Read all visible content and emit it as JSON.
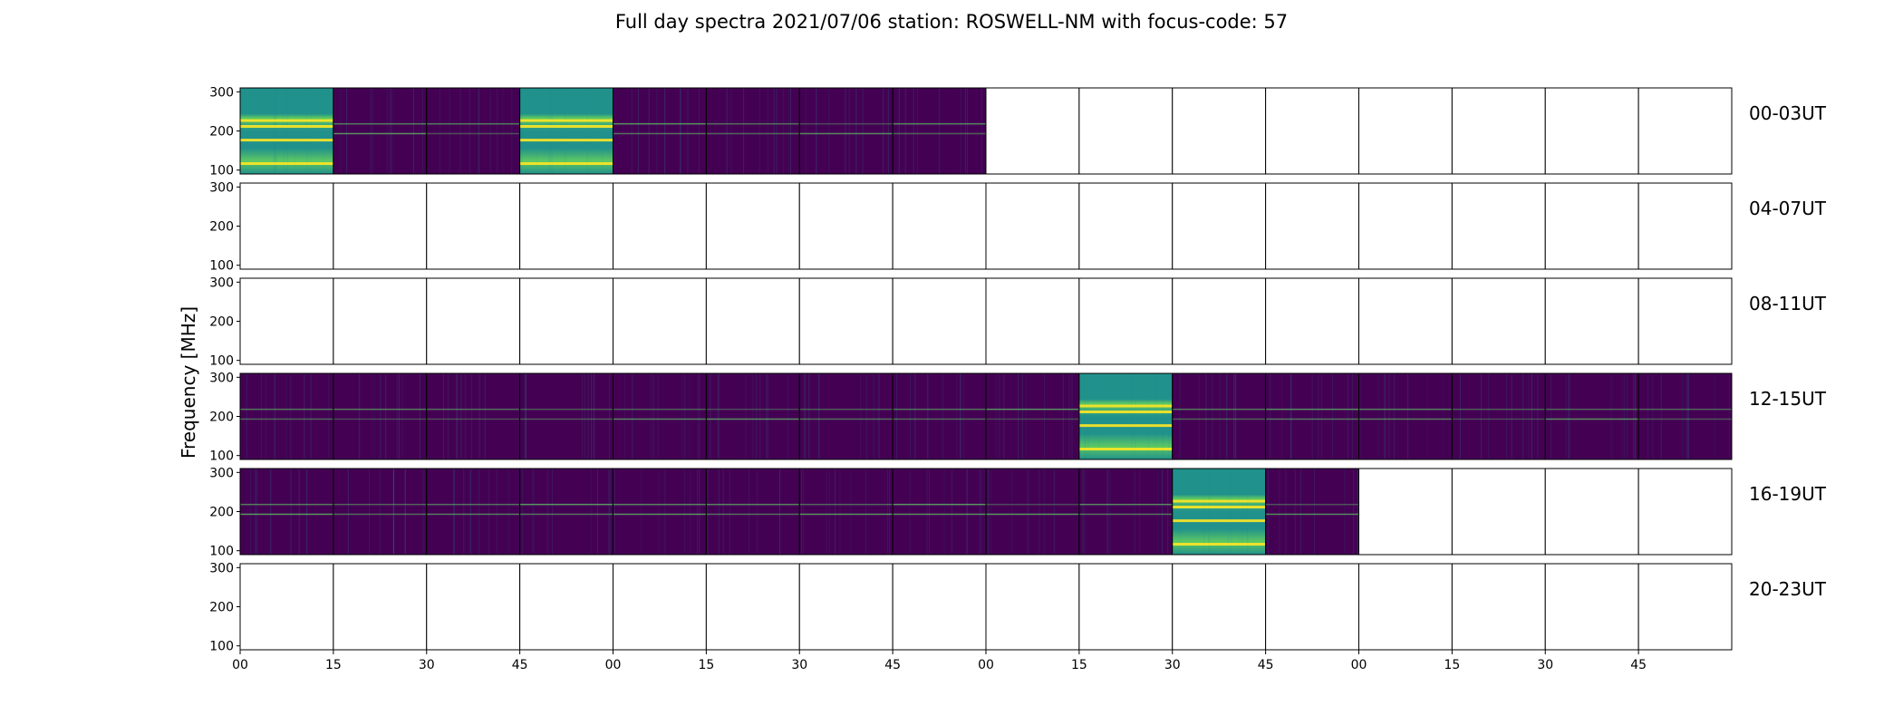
{
  "chart_data": {
    "type": "heatmap",
    "title": "Full day spectra 2021/07/06 station: ROSWELL-NM with focus-code: 57",
    "ylabel": "Frequency [MHz]",
    "xlabel": "",
    "ylim": [
      90,
      310
    ],
    "yticks": [
      100,
      200,
      300
    ],
    "xtick_labels": [
      "00",
      "15",
      "30",
      "45",
      "00",
      "15",
      "30",
      "45",
      "00",
      "15",
      "30",
      "45",
      "00",
      "15",
      "30",
      "45"
    ],
    "colormap": "viridis",
    "colors": {
      "background": "#440154",
      "mid": "#21918c",
      "high": "#5ec962",
      "peak": "#fde725"
    },
    "rows": [
      {
        "label": "00-03UT",
        "data_panels": [
          0,
          1,
          2,
          3,
          4,
          5,
          6,
          7
        ],
        "bright_panels": [
          0,
          3
        ]
      },
      {
        "label": "04-07UT",
        "data_panels": [],
        "bright_panels": []
      },
      {
        "label": "08-11UT",
        "data_panels": [],
        "bright_panels": []
      },
      {
        "label": "12-15UT",
        "data_panels": [
          0,
          1,
          2,
          3,
          4,
          5,
          6,
          7,
          8,
          9,
          10,
          11,
          12,
          13,
          14,
          15
        ],
        "bright_panels": [
          9
        ]
      },
      {
        "label": "16-19UT",
        "data_panels": [
          0,
          1,
          2,
          3,
          4,
          5,
          6,
          7,
          8,
          9,
          10,
          11
        ],
        "bright_panels": [
          10
        ]
      },
      {
        "label": "20-23UT",
        "data_panels": [],
        "bright_panels": []
      }
    ]
  }
}
